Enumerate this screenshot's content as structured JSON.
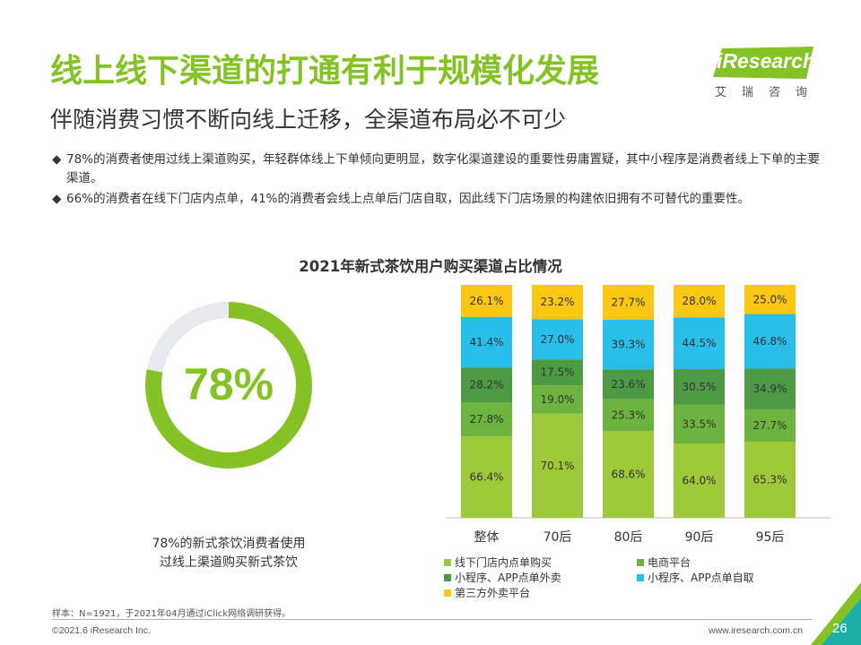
{
  "header": {
    "title": "线上线下渠道的打通有利于规模化发展",
    "subtitle": "伴随消费习惯不断向线上迁移，全渠道布局必不可少"
  },
  "logo": {
    "text": "iResearch",
    "sub": "艾瑞咨询"
  },
  "bullets": [
    {
      "mark": "◆",
      "text": "78%的消费者使用过线上渠道购买，年轻群体线上下单倾向更明显，数字化渠道建设的重要性毋庸置疑，其中小程序是消费者线上下单的主要渠道。"
    },
    {
      "mark": "◆",
      "text": "66%的消费者在线下门店内点单，41%的消费者会线上点单后门店自取，因此线下门店场景的构建依旧拥有不可替代的重要性。"
    }
  ],
  "chart_data": [
    {
      "type": "pie",
      "variant": "donut",
      "title": "2021年新式茶饮用户购买渠道占比情况",
      "center_label": "78%",
      "value": 78,
      "caption": "78%的新式茶饮消费者使用过线上渠道购买新式茶饮",
      "caption_lines": [
        "78%的新式茶饮消费者使用",
        "过线上渠道购买新式茶饮"
      ],
      "colors": {
        "filled": "#84c225",
        "remaining": "#e7e9ee"
      }
    },
    {
      "type": "bar",
      "stacked": true,
      "categories": [
        "整体",
        "70后",
        "80后",
        "90后",
        "95后"
      ],
      "series": [
        {
          "name": "线下门店内点单购买",
          "color": "#9dc93a",
          "values": [
            66.4,
            70.1,
            68.6,
            64.0,
            65.3
          ]
        },
        {
          "name": "电商平台",
          "color": "#6db33f",
          "values": [
            27.8,
            19.0,
            25.3,
            33.5,
            27.7
          ]
        },
        {
          "name": "小程序、APP点单外卖",
          "color": "#4d9a45",
          "values": [
            28.2,
            17.5,
            23.6,
            30.5,
            34.9
          ]
        },
        {
          "name": "小程序、APP点单自取",
          "color": "#29bdea",
          "values": [
            41.4,
            27.0,
            39.3,
            44.5,
            46.8
          ]
        },
        {
          "name": "第三方外卖平台",
          "color": "#fcc714",
          "values": [
            26.1,
            23.2,
            27.7,
            28.0,
            25.0
          ]
        }
      ],
      "value_labels": [
        [
          "66.4%",
          "70.1%",
          "68.6%",
          "64.0%",
          "65.3%"
        ],
        [
          "27.8%",
          "19.0%",
          "25.3%",
          "33.5%",
          "27.7%"
        ],
        [
          "28.2%",
          "17.5%",
          "23.6%",
          "30.5%",
          "34.9%"
        ],
        [
          "41.4%",
          "27.0%",
          "39.3%",
          "44.5%",
          "46.8%"
        ],
        [
          "26.1%",
          "23.2%",
          "27.7%",
          "28.0%",
          "25.0%"
        ]
      ],
      "legend_placement": "bottom"
    }
  ],
  "footer": {
    "source": "样本：N=1921，于2021年04月通过iClick网络调研获得。",
    "copyright": "©2021.6 iResearch Inc.",
    "website": "www.iresearch.com.cn",
    "page": "26"
  },
  "colors": {
    "brand_green": "#84c225",
    "corner_green": "#84c225",
    "corner_teal": "#1ab0a8"
  }
}
